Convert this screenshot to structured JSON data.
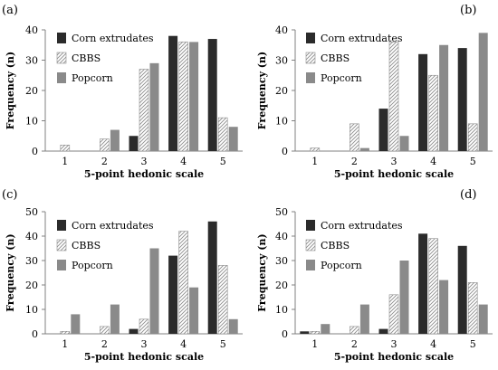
{
  "colors": {
    "corn": "#2b2b2b",
    "cbbs_fill": "#ffffff",
    "cbbs_stroke": "#8c8c8c",
    "popcorn": "#8a8a8a",
    "axis": "#808080"
  },
  "chart_data": [
    {
      "type": "bar",
      "panel": "(a)",
      "categories": [
        "1",
        "2",
        "3",
        "4",
        "5"
      ],
      "series": [
        {
          "name": "Corn extrudates",
          "pattern": "solid-dark",
          "values": [
            0,
            0,
            5,
            38,
            37
          ]
        },
        {
          "name": "CBBS",
          "pattern": "diagonal-hatch",
          "values": [
            2,
            4,
            27,
            36,
            11
          ]
        },
        {
          "name": "Popcorn",
          "pattern": "solid-gray",
          "values": [
            0,
            7,
            29,
            36,
            8
          ]
        }
      ],
      "xlabel": "5-point hedonic scale",
      "ylabel": "Frequency (n)",
      "ylim": [
        0,
        40
      ],
      "yticks": [
        "0",
        "10",
        "20",
        "30",
        "40"
      ],
      "legend": "top-left",
      "grid": false
    },
    {
      "type": "bar",
      "panel": "(b)",
      "categories": [
        "1",
        "2",
        "3",
        "4",
        "5"
      ],
      "series": [
        {
          "name": "Corn extrudates",
          "pattern": "solid-dark",
          "values": [
            0,
            0,
            14,
            32,
            34
          ]
        },
        {
          "name": "CBBS",
          "pattern": "diagonal-hatch",
          "values": [
            1,
            9,
            36,
            25,
            9
          ]
        },
        {
          "name": "Popcorn",
          "pattern": "solid-gray",
          "values": [
            0,
            1,
            5,
            35,
            39
          ]
        }
      ],
      "xlabel": "5-point hedonic scale",
      "ylabel": "Frequency (n)",
      "ylim": [
        0,
        40
      ],
      "yticks": [
        "0",
        "10",
        "20",
        "30",
        "40"
      ],
      "legend": "top-left",
      "grid": false
    },
    {
      "type": "bar",
      "panel": "(c)",
      "categories": [
        "1",
        "2",
        "3",
        "4",
        "5"
      ],
      "series": [
        {
          "name": "Corn extrudates",
          "pattern": "solid-dark",
          "values": [
            0,
            0,
            2,
            32,
            46
          ]
        },
        {
          "name": "CBBS",
          "pattern": "diagonal-hatch",
          "values": [
            1,
            3,
            6,
            42,
            28
          ]
        },
        {
          "name": "Popcorn",
          "pattern": "solid-gray",
          "values": [
            8,
            12,
            35,
            19,
            6
          ]
        }
      ],
      "xlabel": "5-point hedonic scale",
      "ylabel": "Frequency (n)",
      "ylim": [
        0,
        50
      ],
      "yticks": [
        "0",
        "10",
        "20",
        "30",
        "40",
        "50"
      ],
      "legend": "top-left",
      "grid": false
    },
    {
      "type": "bar",
      "panel": "(d)",
      "categories": [
        "1",
        "2",
        "3",
        "4",
        "5"
      ],
      "series": [
        {
          "name": "Corn extrudates",
          "pattern": "solid-dark",
          "values": [
            1,
            0,
            2,
            41,
            36
          ]
        },
        {
          "name": "CBBS",
          "pattern": "diagonal-hatch",
          "values": [
            1,
            3,
            16,
            39,
            21
          ]
        },
        {
          "name": "Popcorn",
          "pattern": "solid-gray",
          "values": [
            4,
            12,
            30,
            22,
            12
          ]
        }
      ],
      "xlabel": "5-point hedonic scale",
      "ylabel": "Frequency (n)",
      "ylim": [
        0,
        50
      ],
      "yticks": [
        "0",
        "10",
        "20",
        "30",
        "40",
        "50"
      ],
      "legend": "top-left",
      "grid": false
    }
  ]
}
